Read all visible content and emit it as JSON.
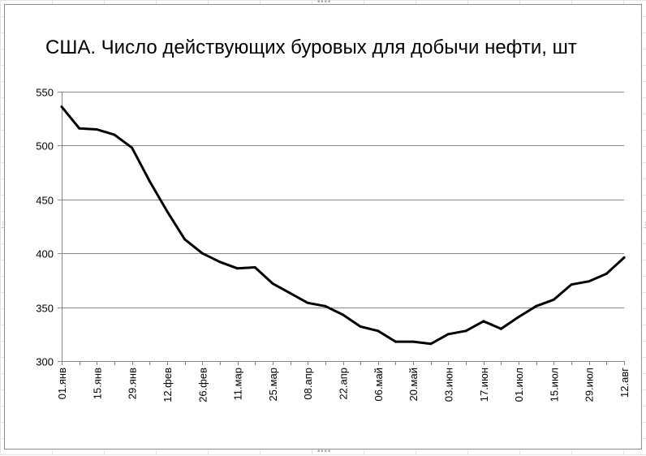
{
  "chart_data": {
    "type": "line",
    "title": "США. Число действующих буровых для добычи нефти, шт",
    "xlabel": "",
    "ylabel": "",
    "ylim": [
      300,
      550
    ],
    "yticks": [
      300,
      350,
      400,
      450,
      500,
      550
    ],
    "grid": true,
    "legend": "none",
    "x_tick_labels": [
      "01.янв",
      "15.янв",
      "29.янв",
      "12.фев",
      "26.фев",
      "11.мар",
      "25.мар",
      "08.апр",
      "22.апр",
      "06.май",
      "20.май",
      "03.июн",
      "17.июн",
      "01.июл",
      "15.июл",
      "29.июл",
      "12.авг"
    ],
    "x": [
      "01.янв",
      "08.янв",
      "15.янв",
      "22.янв",
      "29.янв",
      "05.фев",
      "12.фев",
      "19.фев",
      "26.фев",
      "04.мар",
      "11.мар",
      "18.мар",
      "25.мар",
      "01.апр",
      "08.апр",
      "15.апр",
      "22.апр",
      "29.апр",
      "06.май",
      "13.май",
      "20.май",
      "27.май",
      "03.июн",
      "10.июн",
      "17.июн",
      "24.июн",
      "01.июл",
      "08.июл",
      "15.июл",
      "22.июл",
      "29.июл",
      "05.авг",
      "12.авг"
    ],
    "series": [
      {
        "values": [
          536,
          516,
          515,
          510,
          498,
          467,
          439,
          413,
          400,
          392,
          386,
          387,
          372,
          363,
          354,
          351,
          343,
          332,
          328,
          318,
          318,
          316,
          325,
          328,
          337,
          330,
          341,
          351,
          357,
          371,
          374,
          381,
          396
        ],
        "color": "#000000"
      }
    ]
  },
  "colors": {
    "line": "#000000",
    "gridline": "#878787",
    "axis": "#878787",
    "chart_border": "#8e8e8e",
    "sheet_grid": "#e3e3e3"
  }
}
